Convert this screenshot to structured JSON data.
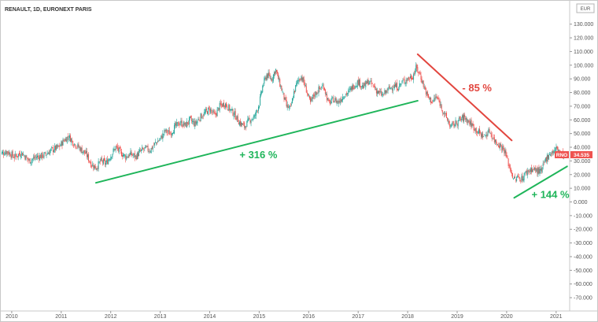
{
  "chart_data": {
    "type": "candlestick",
    "title": "RENAULT, 1D, EURONEXT PARIS",
    "currency": "EUR",
    "ticker_tag": "RNO",
    "last_price": "34.535",
    "grid": false,
    "x_ticks": [
      "2010",
      "2011",
      "2012",
      "2013",
      "2014",
      "2015",
      "2016",
      "2017",
      "2018",
      "2019",
      "2020",
      "2021"
    ],
    "y_ticks": [
      "130.000",
      "120.000",
      "110.000",
      "100.000",
      "90.000",
      "80.000",
      "70.000",
      "60.000",
      "50.000",
      "40.000",
      "30.000",
      "20.000",
      "10.000",
      "0.000",
      "-10.000",
      "-20.000",
      "-30.000",
      "-40.000",
      "-50.000",
      "-60.000",
      "-70.000"
    ],
    "ylim": [
      -77,
      143
    ],
    "xlim": [
      2009.8,
      2021.3
    ],
    "price_path": [
      [
        2009.8,
        35
      ],
      [
        2009.95,
        37
      ],
      [
        2010.1,
        33
      ],
      [
        2010.25,
        36
      ],
      [
        2010.4,
        30
      ],
      [
        2010.55,
        33
      ],
      [
        2010.7,
        34
      ],
      [
        2010.85,
        38
      ],
      [
        2011.0,
        40
      ],
      [
        2011.1,
        45
      ],
      [
        2011.2,
        48
      ],
      [
        2011.3,
        43
      ],
      [
        2011.4,
        40
      ],
      [
        2011.55,
        35
      ],
      [
        2011.65,
        28
      ],
      [
        2011.75,
        25
      ],
      [
        2011.85,
        30
      ],
      [
        2011.95,
        28
      ],
      [
        2012.05,
        34
      ],
      [
        2012.15,
        40
      ],
      [
        2012.25,
        36
      ],
      [
        2012.35,
        33
      ],
      [
        2012.45,
        35
      ],
      [
        2012.55,
        33
      ],
      [
        2012.65,
        37
      ],
      [
        2012.75,
        39
      ],
      [
        2012.85,
        38
      ],
      [
        2012.95,
        43
      ],
      [
        2013.05,
        46
      ],
      [
        2013.15,
        52
      ],
      [
        2013.25,
        50
      ],
      [
        2013.35,
        55
      ],
      [
        2013.45,
        58
      ],
      [
        2013.55,
        56
      ],
      [
        2013.65,
        60
      ],
      [
        2013.75,
        57
      ],
      [
        2013.85,
        62
      ],
      [
        2013.95,
        65
      ],
      [
        2014.05,
        68
      ],
      [
        2014.15,
        63
      ],
      [
        2014.25,
        70
      ],
      [
        2014.35,
        72
      ],
      [
        2014.45,
        68
      ],
      [
        2014.55,
        64
      ],
      [
        2014.65,
        58
      ],
      [
        2014.75,
        55
      ],
      [
        2014.85,
        60
      ],
      [
        2014.95,
        62
      ],
      [
        2015.05,
        72
      ],
      [
        2015.12,
        85
      ],
      [
        2015.2,
        93
      ],
      [
        2015.3,
        90
      ],
      [
        2015.38,
        97
      ],
      [
        2015.45,
        88
      ],
      [
        2015.52,
        80
      ],
      [
        2015.6,
        70
      ],
      [
        2015.68,
        68
      ],
      [
        2015.75,
        80
      ],
      [
        2015.82,
        88
      ],
      [
        2015.9,
        92
      ],
      [
        2016.0,
        82
      ],
      [
        2016.08,
        72
      ],
      [
        2016.15,
        78
      ],
      [
        2016.25,
        82
      ],
      [
        2016.35,
        85
      ],
      [
        2016.45,
        72
      ],
      [
        2016.55,
        75
      ],
      [
        2016.65,
        73
      ],
      [
        2016.75,
        78
      ],
      [
        2016.85,
        80
      ],
      [
        2016.95,
        85
      ],
      [
        2017.05,
        88
      ],
      [
        2017.15,
        84
      ],
      [
        2017.25,
        88
      ],
      [
        2017.35,
        85
      ],
      [
        2017.45,
        80
      ],
      [
        2017.55,
        78
      ],
      [
        2017.65,
        82
      ],
      [
        2017.75,
        85
      ],
      [
        2017.85,
        84
      ],
      [
        2017.95,
        88
      ],
      [
        2018.05,
        90
      ],
      [
        2018.15,
        92
      ],
      [
        2018.22,
        98
      ],
      [
        2018.3,
        93
      ],
      [
        2018.38,
        84
      ],
      [
        2018.45,
        77
      ],
      [
        2018.55,
        73
      ],
      [
        2018.62,
        77
      ],
      [
        2018.7,
        72
      ],
      [
        2018.78,
        65
      ],
      [
        2018.85,
        60
      ],
      [
        2018.92,
        55
      ],
      [
        2019.0,
        57
      ],
      [
        2019.1,
        60
      ],
      [
        2019.2,
        62
      ],
      [
        2019.3,
        58
      ],
      [
        2019.4,
        54
      ],
      [
        2019.5,
        50
      ],
      [
        2019.6,
        48
      ],
      [
        2019.7,
        52
      ],
      [
        2019.8,
        45
      ],
      [
        2019.9,
        42
      ],
      [
        2020.0,
        38
      ],
      [
        2020.05,
        32
      ],
      [
        2020.12,
        24
      ],
      [
        2020.2,
        16
      ],
      [
        2020.28,
        18
      ],
      [
        2020.36,
        17
      ],
      [
        2020.45,
        22
      ],
      [
        2020.55,
        24
      ],
      [
        2020.65,
        23
      ],
      [
        2020.75,
        22
      ],
      [
        2020.82,
        30
      ],
      [
        2020.9,
        35
      ],
      [
        2021.0,
        37
      ],
      [
        2021.05,
        39
      ],
      [
        2021.1,
        38
      ],
      [
        2021.15,
        35
      ],
      [
        2021.2,
        34.5
      ]
    ],
    "trend_lines": [
      {
        "name": "uptrend",
        "color": "#1fb55a",
        "from": [
          2011.75,
          14
        ],
        "to": [
          2018.25,
          74
        ]
      },
      {
        "name": "downtrend",
        "color": "#e2463f",
        "from": [
          2018.25,
          108
        ],
        "to": [
          2020.15,
          45
        ]
      },
      {
        "name": "recovery",
        "color": "#1fb55a",
        "from": [
          2020.2,
          3
        ],
        "to": [
          2021.27,
          26
        ]
      }
    ],
    "annotations": [
      {
        "text": "+ 316 %",
        "color": "#1fb55a",
        "x": 2014.65,
        "y": 32
      },
      {
        "text": "- 85 %",
        "color": "#e2463f",
        "x": 2019.15,
        "y": 81
      },
      {
        "text": "+ 144 %",
        "color": "#1fb55a",
        "x": 2020.55,
        "y": 3
      }
    ],
    "colors": {
      "up": "#26a69a",
      "down": "#ef5350",
      "last_price_tag": "#ef5350"
    }
  }
}
